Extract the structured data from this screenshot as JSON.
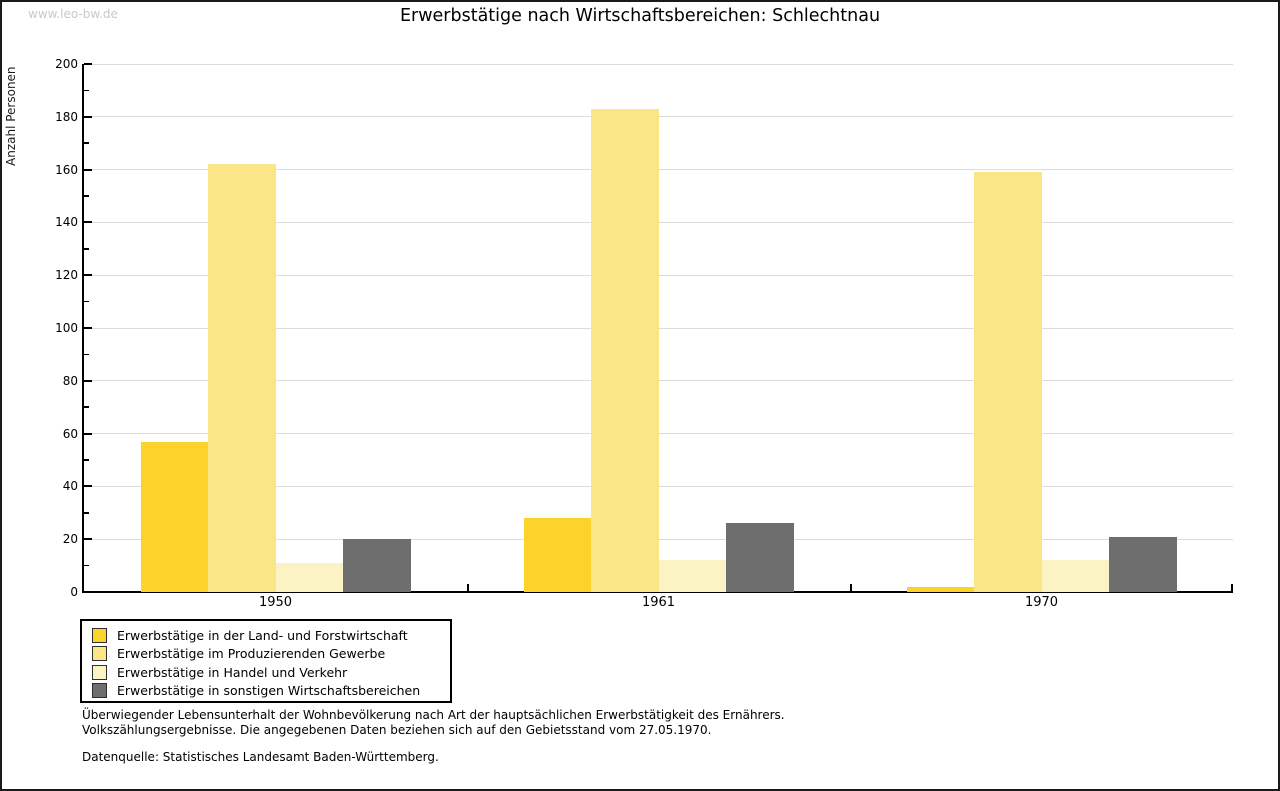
{
  "watermark": "www.leo-bw.de",
  "title": "Erwerbstätige nach Wirtschaftsbereichen: Schlechtnau",
  "chart_data": {
    "type": "bar",
    "title": "Erwerbstätige nach Wirtschaftsbereichen: Schlechtnau",
    "xlabel": "",
    "ylabel": "Anzahl Personen",
    "categories": [
      "1950",
      "1961",
      "1970"
    ],
    "series": [
      {
        "name": "Erwerbstätige in der Land- und Forstwirtschaft",
        "color": "#fbd32b",
        "values": [
          57,
          28,
          2
        ]
      },
      {
        "name": "Erwerbstätige im Produzierenden Gewerbe",
        "color": "#fbe687",
        "values": [
          162,
          183,
          159
        ]
      },
      {
        "name": "Erwerbstätige in Handel und Verkehr",
        "color": "#fcf3c5",
        "values": [
          11,
          12,
          12
        ]
      },
      {
        "name": "Erwerbstätige in sonstigen Wirtschaftsbereichen",
        "color": "#6e6e6e",
        "values": [
          20,
          26,
          21
        ]
      }
    ],
    "ylim": [
      0,
      200
    ],
    "ytick_step": 20,
    "y_minor_tick_step": 10,
    "grid": true,
    "gridline_color": "#dcdcdc",
    "legend_position": "bottom-left"
  },
  "footnotes": {
    "lines": [
      "Überwiegender Lebensunterhalt der Wohnbevölkerung nach Art der hauptsächlichen Erwerbstätigkeit des Ernährers.",
      "Volkszählungsergebnisse. Die angegebenen Daten beziehen sich auf den Gebietsstand vom 27.05.1970."
    ],
    "source": "Datenquelle: Statistisches Landesamt Baden-Württemberg."
  }
}
